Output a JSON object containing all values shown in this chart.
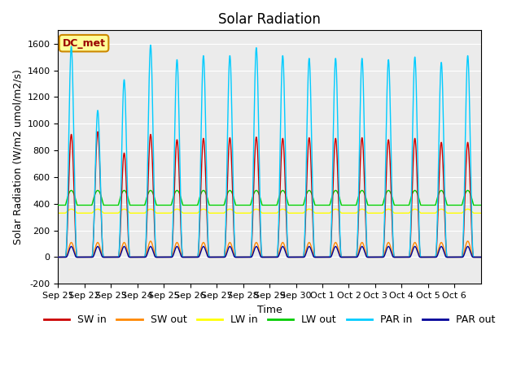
{
  "title": "Solar Radiation",
  "xlabel": "Time",
  "ylabel": "Solar Radiation (W/m2 umol/m2/s)",
  "ylim": [
    -200,
    1700
  ],
  "yticks": [
    -200,
    0,
    200,
    400,
    600,
    800,
    1000,
    1200,
    1400,
    1600
  ],
  "label_text": "DC_met",
  "label_bg": "#FFFF99",
  "label_edge": "#CC8800",
  "plot_bg": "#EBEBEB",
  "fig_bg": "#FFFFFF",
  "line_colors": {
    "SW_in": "#CC0000",
    "SW_out": "#FF8800",
    "LW_in": "#FFFF00",
    "LW_out": "#00CC00",
    "PAR_in": "#00CCFF",
    "PAR_out": "#000099"
  },
  "legend_labels": [
    "SW in",
    "SW out",
    "LW in",
    "LW out",
    "PAR in",
    "PAR out"
  ],
  "n_days": 16,
  "points_per_day": 288,
  "SW_in_peak": [
    920,
    940,
    780,
    920,
    880,
    890,
    895,
    900,
    890,
    895,
    890,
    895,
    880,
    890,
    860,
    860
  ],
  "PAR_in_peak": [
    1580,
    1100,
    1330,
    1590,
    1480,
    1510,
    1510,
    1570,
    1510,
    1490,
    1490,
    1490,
    1480,
    1500,
    1460,
    1510
  ],
  "SW_out_peak": [
    110,
    110,
    110,
    120,
    110,
    110,
    110,
    110,
    110,
    110,
    110,
    110,
    110,
    110,
    110,
    120
  ],
  "PAR_out_peak": 80,
  "LW_in_day": 360,
  "LW_in_night": 330,
  "LW_out_day_peak": 500,
  "LW_out_night": 390,
  "xticklabels": [
    "Sep 21",
    "Sep 22",
    "Sep 23",
    "Sep 24",
    "Sep 25",
    "Sep 26",
    "Sep 27",
    "Sep 28",
    "Sep 29",
    "Sep 30",
    "Oct 1",
    "Oct 2",
    "Oct 3",
    "Oct 4",
    "Oct 5",
    "Oct 6"
  ],
  "title_fontsize": 12,
  "axis_fontsize": 9,
  "tick_fontsize": 8,
  "line_width": 1.0
}
